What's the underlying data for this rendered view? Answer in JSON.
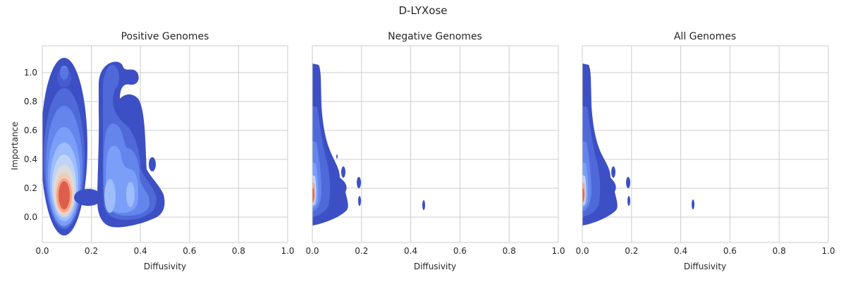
{
  "figure": {
    "suptitle": "D-LYXose"
  },
  "chart_data": [
    {
      "type": "kde_contour",
      "title": "Positive Genomes",
      "xlabel": "Diffusivity",
      "ylabel": "Importance",
      "xlim": [
        0.0,
        1.0
      ],
      "ylim": [
        -0.18,
        1.18
      ],
      "xticks": [
        "0.0",
        "0.2",
        "0.4",
        "0.6",
        "0.8",
        "1.0"
      ],
      "yticks": [
        "0.0",
        "0.2",
        "0.4",
        "0.6",
        "0.8",
        "1.0"
      ],
      "grid": true,
      "colormap": "coolwarm",
      "density_peaks": [
        {
          "x": 0.09,
          "y": 0.15,
          "level": "highest"
        },
        {
          "x": 0.27,
          "y": 0.14,
          "level": "medium"
        },
        {
          "x": 0.35,
          "y": 0.15,
          "level": "medium"
        },
        {
          "x": 0.27,
          "y": 1.0,
          "level": "low"
        },
        {
          "x": 0.37,
          "y": 0.98,
          "level": "low"
        },
        {
          "x": 0.44,
          "y": 0.37,
          "level": "low"
        }
      ]
    },
    {
      "type": "kde_contour",
      "title": "Negative Genomes",
      "xlabel": "Diffusivity",
      "xlim": [
        0.0,
        1.0
      ],
      "ylim": [
        -0.18,
        1.18
      ],
      "xticks": [
        "0.0",
        "0.2",
        "0.4",
        "0.6",
        "0.8",
        "1.0"
      ],
      "grid": true,
      "colormap": "coolwarm",
      "density_peaks": [
        {
          "x": 0.0,
          "y": 0.12,
          "level": "highest"
        },
        {
          "x": 0.13,
          "y": 0.33,
          "level": "low"
        },
        {
          "x": 0.19,
          "y": 0.24,
          "level": "low"
        },
        {
          "x": 0.19,
          "y": 0.12,
          "level": "low"
        },
        {
          "x": 0.45,
          "y": 0.09,
          "level": "low"
        }
      ]
    },
    {
      "type": "kde_contour",
      "title": "All Genomes",
      "xlabel": "Diffusivity",
      "xlim": [
        0.0,
        1.0
      ],
      "ylim": [
        -0.18,
        1.18
      ],
      "xticks": [
        "0.0",
        "0.2",
        "0.4",
        "0.6",
        "0.8",
        "1.0"
      ],
      "grid": true,
      "colormap": "coolwarm",
      "density_peaks": [
        {
          "x": 0.0,
          "y": 0.12,
          "level": "highest"
        },
        {
          "x": 0.13,
          "y": 0.33,
          "level": "low"
        },
        {
          "x": 0.19,
          "y": 0.24,
          "level": "low"
        },
        {
          "x": 0.19,
          "y": 0.12,
          "level": "low"
        },
        {
          "x": 0.45,
          "y": 0.09,
          "level": "low"
        }
      ]
    }
  ],
  "colors": {
    "level1": "#3d4fc4",
    "level2": "#4f69d9",
    "level3": "#6385ec",
    "level4": "#7b9ff9",
    "level5": "#9dbdfb",
    "level6": "#c0d4f5",
    "level7": "#dddcdc",
    "level8": "#f2cbb7",
    "level9": "#f6a385",
    "level10": "#dd5f4b",
    "grid": "#cccccc",
    "frame": "#cccccc",
    "text": "#262626"
  }
}
